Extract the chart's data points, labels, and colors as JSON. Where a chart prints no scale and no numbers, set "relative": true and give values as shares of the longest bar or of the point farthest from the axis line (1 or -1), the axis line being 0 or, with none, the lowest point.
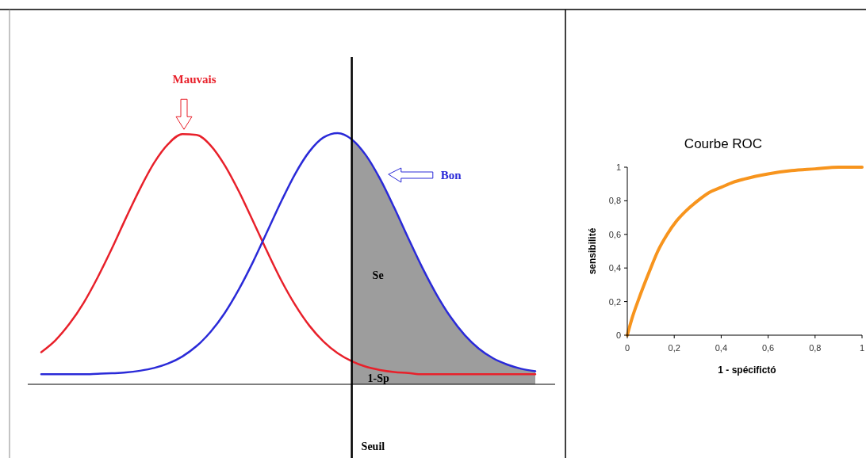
{
  "chart_data": [
    {
      "type": "line",
      "relative": true,
      "categories": [
        null,
        null,
        null,
        null,
        null,
        null,
        null,
        null,
        null,
        null,
        null,
        null,
        null,
        null,
        null,
        null,
        null,
        null,
        null,
        null,
        null,
        null,
        null,
        null,
        null,
        null,
        null,
        null,
        null,
        null,
        null,
        null,
        null,
        null,
        null,
        null
      ],
      "series": [
        {
          "type": "area",
          "color": "#8c8c8c",
          "values": [
            null,
            null,
            null,
            null,
            null,
            null,
            null,
            null,
            null,
            null,
            null,
            null,
            null,
            null,
            null,
            null,
            null,
            null,
            null,
            null,
            null,
            null,
            0.975,
            0.912,
            0.818,
            0.704,
            0.582,
            0.464,
            0.358,
            0.268,
            0.196,
            0.142,
            0.104,
            0.079,
            0.062,
            0.052
          ]
        },
        {
          "name": "Mauvais",
          "color": "#e8202a",
          "values": [
            0.128,
            0.175,
            0.241,
            0.324,
            0.426,
            0.54,
            0.662,
            0.779,
            0.882,
            0.957,
            0.996,
            0.993,
            0.951,
            0.872,
            0.768,
            0.65,
            0.529,
            0.414,
            0.315,
            0.233,
            0.17,
            0.124,
            0.092,
            0.07,
            0.057,
            0.049,
            0.045,
            0.04,
            0.04,
            0.04,
            0.04,
            0.04,
            0.04,
            0.04,
            0.04,
            0.04
          ]
        },
        {
          "name": "Bon",
          "color": "#2a2ad8",
          "values": [
            0.04,
            0.04,
            0.04,
            0.04,
            0.042,
            0.044,
            0.047,
            0.054,
            0.065,
            0.083,
            0.111,
            0.152,
            0.209,
            0.284,
            0.378,
            0.487,
            0.607,
            0.728,
            0.839,
            0.927,
            0.983,
            1.0,
            0.975,
            0.912,
            0.818,
            0.704,
            0.582,
            0.464,
            0.358,
            0.268,
            0.196,
            0.142,
            0.104,
            0.079,
            0.062,
            0.052
          ]
        }
      ],
      "annotations": [
        "Se",
        "1-Sp",
        "Seuil"
      ],
      "legend": "top",
      "marker": "none",
      "line_style": "solid"
    },
    {
      "type": "line",
      "title": "Courbe ROC",
      "xlabel": "1 - spécifictó",
      "ylabel": "sensibilité",
      "x": [
        0,
        0.02,
        0.05,
        0.08,
        0.1,
        0.13,
        0.17,
        0.21,
        0.25,
        0.3,
        0.35,
        0.4,
        0.45,
        0.5,
        0.6,
        0.7,
        0.8,
        0.9,
        1
      ],
      "series": [
        {
          "color": "#f7941d",
          "values": [
            0,
            0.1,
            0.22,
            0.33,
            0.4,
            0.5,
            0.6,
            0.68,
            0.74,
            0.8,
            0.85,
            0.88,
            0.91,
            0.93,
            0.96,
            0.98,
            0.99,
            1,
            1
          ]
        }
      ],
      "xlim": [
        0,
        1
      ],
      "ylim": [
        0,
        1
      ],
      "xticks": [
        0,
        {
          "value": 0.2,
          "label": "0,2"
        },
        {
          "value": 0.4,
          "label": "0,4"
        },
        {
          "value": 0.6,
          "label": "0,6"
        },
        {
          "value": 0.8,
          "label": "0,8"
        },
        1
      ],
      "yticks": [
        0,
        {
          "value": 0.2,
          "label": "0,2"
        },
        {
          "value": 0.4,
          "label": "0,4"
        },
        {
          "value": 0.6,
          "label": "0,6"
        },
        {
          "value": 0.8,
          "label": "0,8"
        },
        1
      ],
      "legend": false,
      "marker": "none",
      "line_style": "solid",
      "grid": false
    }
  ]
}
